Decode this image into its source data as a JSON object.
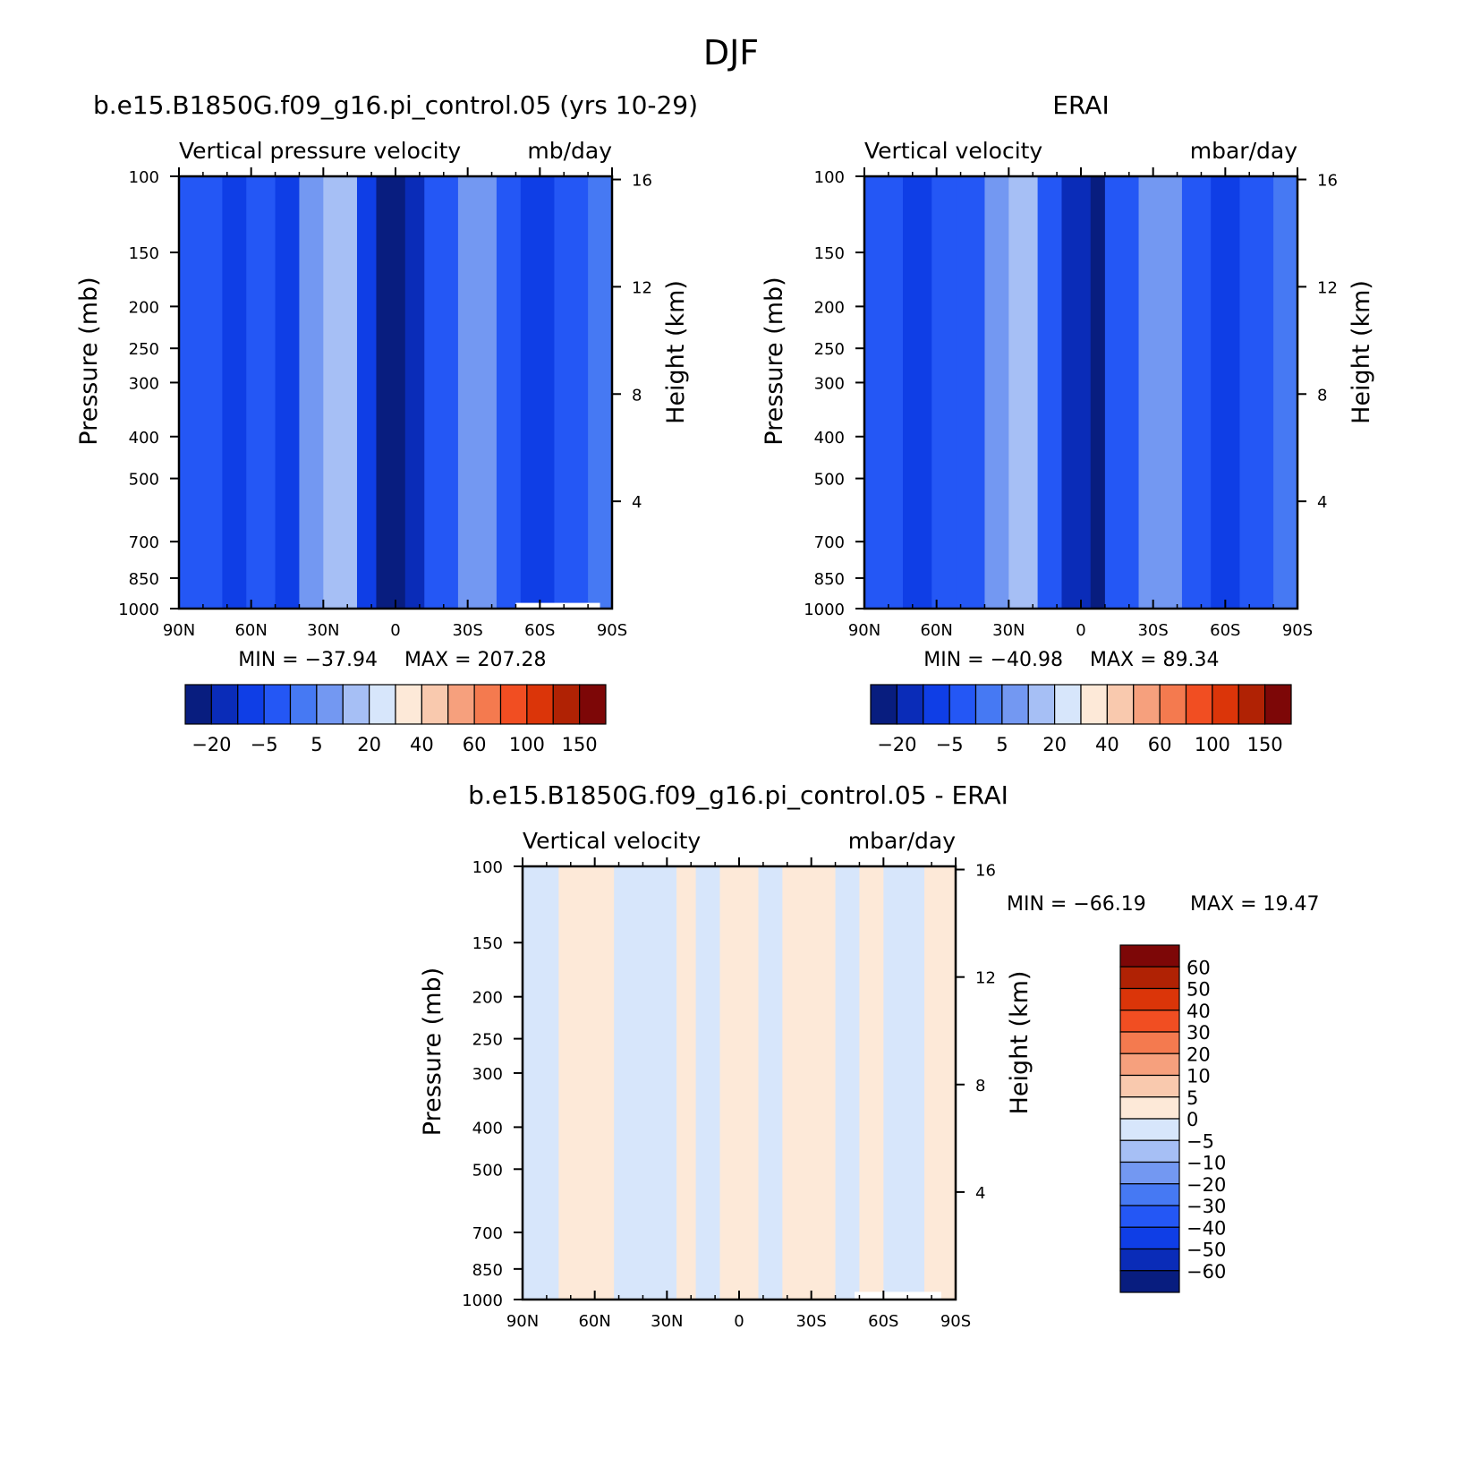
{
  "page": {
    "season": "DJF"
  },
  "colors": {
    "full_field": [
      "#081d7f",
      "#0a2cb8",
      "#0f3ee6",
      "#2457f5",
      "#4679f3",
      "#7398f2",
      "#a6bff5",
      "#d7e6fb",
      "#fde9d8",
      "#f9c9ae",
      "#f6a07d",
      "#f47a4f",
      "#f14e22",
      "#db3509",
      "#b02204",
      "#7d0707"
    ],
    "difference": [
      "#081d7f",
      "#0a2cb8",
      "#0f3ee6",
      "#2457f5",
      "#4679f3",
      "#7398f2",
      "#a6bff5",
      "#d7e6fb",
      "#fde9d8",
      "#f9c9ae",
      "#f6a07d",
      "#f47a4f",
      "#f14e22",
      "#db3509",
      "#b02204",
      "#7d0707"
    ],
    "missing": "#ffffff",
    "axis": "#000000"
  },
  "chart_data": [
    {
      "type": "heatmap",
      "title": "b.e15.B1850G.f09_g16.pi_control.05 (yrs 10-29)",
      "field_label": "Vertical pressure velocity",
      "units": "mb/day",
      "ylabel": "Pressure (mb)",
      "ylabel_right": "Height (km)",
      "x_ticks": [
        "90N",
        "60N",
        "30N",
        "0",
        "30S",
        "60S",
        "90S"
      ],
      "x_values": [
        90,
        60,
        30,
        0,
        -30,
        -60,
        -90
      ],
      "xlim": [
        90,
        -90
      ],
      "y_ticks": [
        100,
        150,
        200,
        250,
        300,
        400,
        500,
        700,
        850,
        1000
      ],
      "ylim": [
        1000,
        100
      ],
      "y_scale": "log",
      "right_ticks": [
        4,
        8,
        12,
        16
      ],
      "min_label": "MIN = -37.94",
      "max_label": "MAX = 207.28",
      "min": -37.94,
      "max": 207.28,
      "colorbar_labels": [
        "-20",
        "-5",
        "5",
        "20",
        "40",
        "60",
        "100",
        "150"
      ],
      "colorbar_orientation": "horizontal",
      "colorbar_placement": "below",
      "bands": [
        {
          "from": 90,
          "to": 72,
          "level": 3
        },
        {
          "from": 72,
          "to": 62,
          "level": 2
        },
        {
          "from": 62,
          "to": 50,
          "level": 3
        },
        {
          "from": 50,
          "to": 40,
          "level": 2
        },
        {
          "from": 40,
          "to": 30,
          "level": 5
        },
        {
          "from": 30,
          "to": 16,
          "level": 6
        },
        {
          "from": 16,
          "to": 8,
          "level": 2
        },
        {
          "from": 8,
          "to": -4,
          "level": 0
        },
        {
          "from": -4,
          "to": -12,
          "level": 1
        },
        {
          "from": -12,
          "to": -26,
          "level": 3
        },
        {
          "from": -26,
          "to": -42,
          "level": 5
        },
        {
          "from": -42,
          "to": -52,
          "level": 3
        },
        {
          "from": -52,
          "to": -66,
          "level": 2
        },
        {
          "from": -66,
          "to": -80,
          "level": 3
        },
        {
          "from": -80,
          "to": -90,
          "level": 4
        }
      ],
      "missing_region": {
        "lat_from": -50,
        "lat_to": -85,
        "p_from": 970,
        "p_to": 1000
      }
    },
    {
      "type": "heatmap",
      "title": "ERAI",
      "field_label": "Vertical velocity",
      "units": "mbar/day",
      "ylabel": "Pressure (mb)",
      "ylabel_right": "Height (km)",
      "x_ticks": [
        "90N",
        "60N",
        "30N",
        "0",
        "30S",
        "60S",
        "90S"
      ],
      "x_values": [
        90,
        60,
        30,
        0,
        -30,
        -60,
        -90
      ],
      "xlim": [
        90,
        -90
      ],
      "y_ticks": [
        100,
        150,
        200,
        250,
        300,
        400,
        500,
        700,
        850,
        1000
      ],
      "ylim": [
        1000,
        100
      ],
      "y_scale": "log",
      "right_ticks": [
        4,
        8,
        12,
        16
      ],
      "min_label": "MIN = -40.98",
      "max_label": "MAX = 89.34",
      "min": -40.98,
      "max": 89.34,
      "colorbar_labels": [
        "-20",
        "-5",
        "5",
        "20",
        "40",
        "60",
        "100",
        "150"
      ],
      "colorbar_orientation": "horizontal",
      "colorbar_placement": "below",
      "bands": [
        {
          "from": 90,
          "to": 74,
          "level": 3
        },
        {
          "from": 74,
          "to": 62,
          "level": 2
        },
        {
          "from": 62,
          "to": 52,
          "level": 3
        },
        {
          "from": 52,
          "to": 40,
          "level": 3
        },
        {
          "from": 40,
          "to": 30,
          "level": 5
        },
        {
          "from": 30,
          "to": 18,
          "level": 6
        },
        {
          "from": 18,
          "to": 8,
          "level": 3
        },
        {
          "from": 8,
          "to": -4,
          "level": 1
        },
        {
          "from": -4,
          "to": -10,
          "level": 0
        },
        {
          "from": -10,
          "to": -24,
          "level": 3
        },
        {
          "from": -24,
          "to": -42,
          "level": 5
        },
        {
          "from": -42,
          "to": -54,
          "level": 3
        },
        {
          "from": -54,
          "to": -66,
          "level": 2
        },
        {
          "from": -66,
          "to": -80,
          "level": 3
        },
        {
          "from": -80,
          "to": -90,
          "level": 4
        }
      ],
      "missing_region": null
    },
    {
      "type": "heatmap",
      "title": "b.e15.B1850G.f09_g16.pi_control.05 - ERAI",
      "field_label": "Vertical velocity",
      "units": "mbar/day",
      "ylabel": "Pressure (mb)",
      "ylabel_right": "Height (km)",
      "x_ticks": [
        "90N",
        "60N",
        "30N",
        "0",
        "30S",
        "60S",
        "90S"
      ],
      "x_values": [
        90,
        60,
        30,
        0,
        -30,
        -60,
        -90
      ],
      "xlim": [
        90,
        -90
      ],
      "y_ticks": [
        100,
        150,
        200,
        250,
        300,
        400,
        500,
        700,
        850,
        1000
      ],
      "ylim": [
        1000,
        100
      ],
      "y_scale": "log",
      "right_ticks": [
        4,
        8,
        12,
        16
      ],
      "min_label": "MIN = -66.19",
      "max_label": "MAX = 19.47",
      "min": -66.19,
      "max": 19.47,
      "colorbar_labels": [
        "60",
        "50",
        "40",
        "30",
        "20",
        "10",
        "5",
        "0",
        "-5",
        "-10",
        "-20",
        "-30",
        "-40",
        "-50",
        "-60"
      ],
      "colorbar_orientation": "vertical",
      "colorbar_placement": "right",
      "bands": [
        {
          "from": 90,
          "to": 75,
          "level": 7
        },
        {
          "from": 75,
          "to": 52,
          "level": 8
        },
        {
          "from": 52,
          "to": 26,
          "level": 7
        },
        {
          "from": 26,
          "to": 18,
          "level": 8
        },
        {
          "from": 18,
          "to": 8,
          "level": 7
        },
        {
          "from": 8,
          "to": -8,
          "level": 8
        },
        {
          "from": -8,
          "to": -18,
          "level": 7
        },
        {
          "from": -18,
          "to": -40,
          "level": 8
        },
        {
          "from": -40,
          "to": -50,
          "level": 7
        },
        {
          "from": -50,
          "to": -60,
          "level": 8
        },
        {
          "from": -60,
          "to": -77,
          "level": 7
        },
        {
          "from": -77,
          "to": -90,
          "level": 8
        }
      ],
      "missing_region": {
        "lat_from": -48,
        "lat_to": -84,
        "p_from": 960,
        "p_to": 1000
      }
    }
  ]
}
